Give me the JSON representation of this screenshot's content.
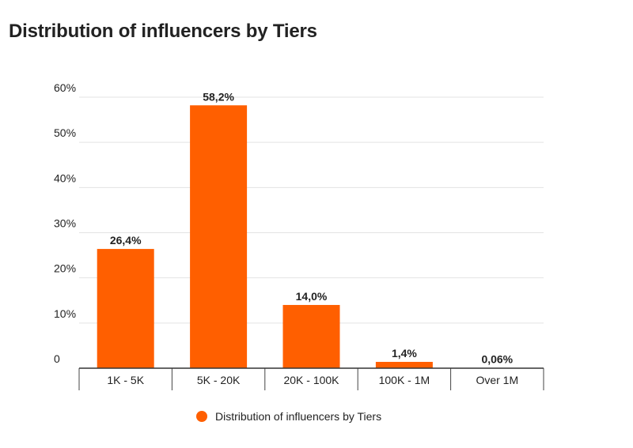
{
  "chart_data": {
    "type": "bar",
    "title": "Distribution of influencers by Tiers",
    "categories": [
      "1K - 5K",
      "5K - 20K",
      "20K - 100K",
      "100K - 1M",
      "Over 1M"
    ],
    "series": [
      {
        "name": "Distribution of influencers by Tiers",
        "values": [
          26.4,
          58.2,
          14.0,
          1.4,
          0.06
        ],
        "data_labels": [
          "26,4%",
          "58,2%",
          "14,0%",
          "1,4%",
          "0,06%"
        ],
        "color": "#ff5f00"
      }
    ],
    "y_ticks": [
      {
        "value": 0,
        "label": "0"
      },
      {
        "value": 10,
        "label": "10%"
      },
      {
        "value": 20,
        "label": "20%"
      },
      {
        "value": 30,
        "label": "30%"
      },
      {
        "value": 40,
        "label": "40%"
      },
      {
        "value": 50,
        "label": "50%"
      },
      {
        "value": 60,
        "label": "60%"
      }
    ],
    "ylim": [
      0,
      60
    ],
    "xlabel": "",
    "ylabel": "",
    "grid": true,
    "legend_position": "bottom"
  }
}
